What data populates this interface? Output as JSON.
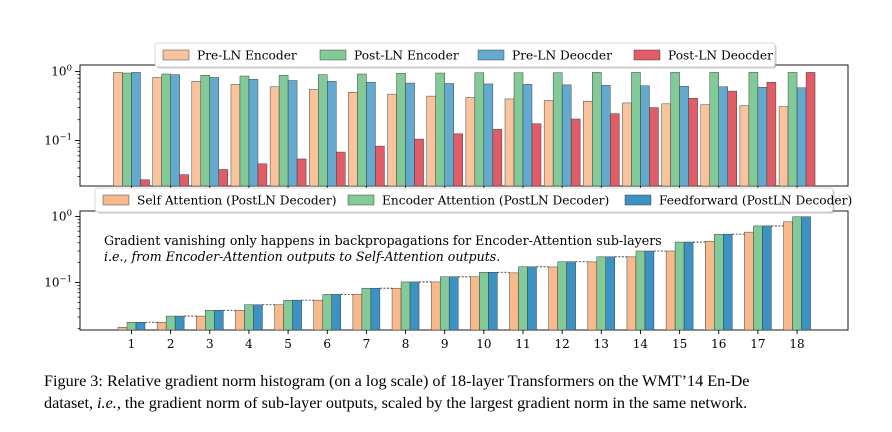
{
  "chart_data": [
    {
      "type": "bar",
      "yscale": "log",
      "ylim": [
        0.02,
        1.2
      ],
      "ytick_labels": [
        "10^0",
        "10^-1"
      ],
      "categories": [
        "1",
        "2",
        "3",
        "4",
        "5",
        "6",
        "7",
        "8",
        "9",
        "10",
        "11",
        "12",
        "13",
        "14",
        "15",
        "16",
        "17",
        "18"
      ],
      "legend_placement": "top-center",
      "grid": false,
      "series": [
        {
          "name": "Pre-LN Encoder",
          "color": "#f8c39d",
          "values": [
            0.97,
            0.82,
            0.72,
            0.65,
            0.6,
            0.55,
            0.5,
            0.47,
            0.44,
            0.42,
            0.4,
            0.38,
            0.37,
            0.35,
            0.34,
            0.33,
            0.32,
            0.31
          ]
        },
        {
          "name": "Post-LN Encoder",
          "color": "#82cb98",
          "values": [
            0.95,
            0.92,
            0.88,
            0.86,
            0.88,
            0.9,
            0.92,
            0.94,
            0.95,
            0.96,
            0.96,
            0.96,
            0.97,
            0.97,
            0.97,
            0.97,
            0.97,
            0.97
          ]
        },
        {
          "name": "Pre-LN Deocder",
          "color": "#64aacf",
          "values": [
            0.97,
            0.9,
            0.82,
            0.77,
            0.74,
            0.72,
            0.7,
            0.68,
            0.67,
            0.66,
            0.65,
            0.64,
            0.63,
            0.62,
            0.61,
            0.6,
            0.59,
            0.58
          ]
        },
        {
          "name": "Post-LN Deocder",
          "color": "#e05c66",
          "values": [
            0.027,
            0.032,
            0.038,
            0.046,
            0.054,
            0.068,
            0.083,
            0.105,
            0.125,
            0.145,
            0.175,
            0.205,
            0.245,
            0.3,
            0.41,
            0.52,
            0.7,
            0.97
          ]
        }
      ]
    },
    {
      "type": "bar",
      "yscale": "log",
      "ylim": [
        0.02,
        1.2
      ],
      "ytick_labels": [
        "10^0",
        "10^-1"
      ],
      "categories": [
        "1",
        "2",
        "3",
        "4",
        "5",
        "6",
        "7",
        "8",
        "9",
        "10",
        "11",
        "12",
        "13",
        "14",
        "15",
        "16",
        "17",
        "18"
      ],
      "legend_placement": "top-center",
      "grid": false,
      "series": [
        {
          "name": "Self Attention (PostLN Decoder)",
          "color": "#f8b98c",
          "values": [
            0.021,
            0.025,
            0.031,
            0.038,
            0.046,
            0.054,
            0.066,
            0.082,
            0.102,
            0.122,
            0.14,
            0.172,
            0.205,
            0.245,
            0.3,
            0.42,
            0.58,
            0.83
          ]
        },
        {
          "name": "Encoder Attention (PostLN Decoder)",
          "color": "#82cb98",
          "values": [
            0.025,
            0.031,
            0.038,
            0.046,
            0.054,
            0.066,
            0.082,
            0.102,
            0.122,
            0.143,
            0.173,
            0.206,
            0.245,
            0.3,
            0.41,
            0.54,
            0.72,
            0.99
          ]
        },
        {
          "name": "Feedforward (PostLN Decoder)",
          "color": "#3d92c4",
          "values": [
            0.025,
            0.031,
            0.038,
            0.046,
            0.054,
            0.066,
            0.082,
            0.102,
            0.122,
            0.143,
            0.173,
            0.206,
            0.245,
            0.3,
            0.41,
            0.54,
            0.72,
            0.99
          ]
        }
      ],
      "annotation": {
        "line1": "Gradient vanishing only happens in backpropagations for Encoder-Attention sub-layers",
        "line2": "i.e., from Encoder-Attention outputs to Self-Attention outputs."
      }
    }
  ],
  "caption": {
    "line1": "Figure 3:  Relative gradient norm histogram (on a log scale) of 18-layer Transformers on the WMT’14 En-De",
    "line2_prefix": "dataset, ",
    "line2_ie": "i.e.",
    "line2_suffix": ", the gradient norm of sub-layer outputs, scaled by the largest gradient norm in the same network."
  }
}
